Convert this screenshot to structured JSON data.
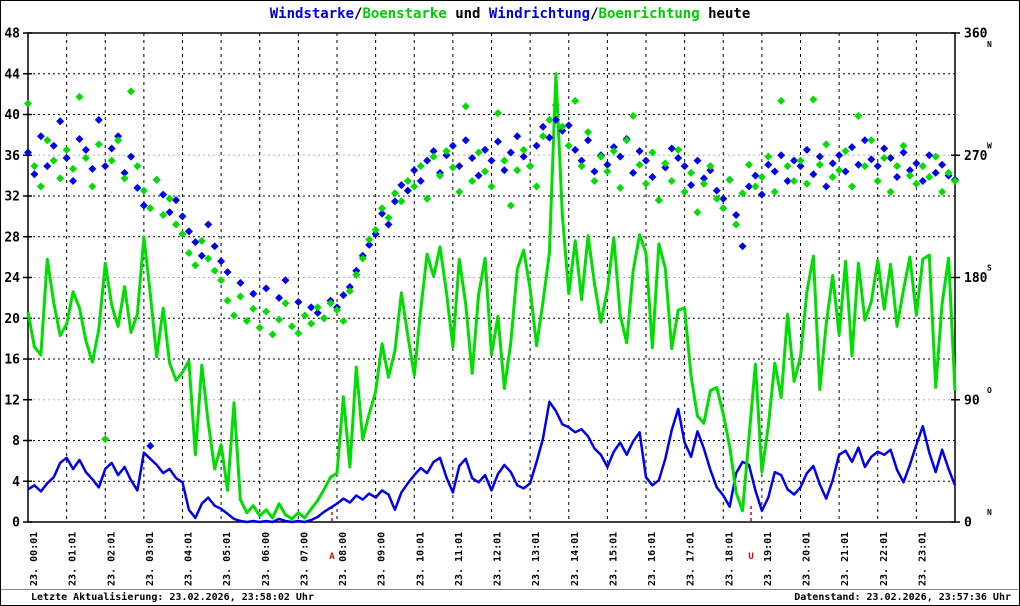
{
  "title": {
    "windstarke": "Windstarke",
    "slash1": "/",
    "boenstarke": "Boenstarke",
    "und": " und ",
    "windrichtung": "Windrichtung",
    "slash2": "/",
    "boenrichtung": "Boenrichtung",
    "heute": " heute"
  },
  "footer": {
    "left": "Letzte Aktualisierung: 23.02.2026, 23:58:02 Uhr",
    "right": "Datenstand: 23.02.2026, 23:57:36 Uhr"
  },
  "colors": {
    "blue": "#0000dd",
    "green": "#00cc00",
    "plot_blue": "#0000ee",
    "plot_green": "#00dd00",
    "red": "#ee0000",
    "grid_black": "#000000",
    "grid_gray": "#b0b0b0"
  },
  "chart_data": {
    "type": "line+scatter",
    "start_hour": 0,
    "interval_minutes": 10,
    "axes": {
      "left": {
        "min": 0,
        "max": 48,
        "step": 4,
        "ticks": [
          0,
          4,
          8,
          12,
          16,
          20,
          24,
          28,
          32,
          36,
          40,
          44,
          48
        ]
      },
      "right": {
        "min": 0,
        "max": 360,
        "ticks": [
          {
            "deg": 360,
            "label": "360",
            "letter": "N",
            "letter_below": true
          },
          {
            "deg": 270,
            "label": "270",
            "letter": "W",
            "letter_below": false
          },
          {
            "deg": 180,
            "label": "180",
            "letter": "S",
            "letter_below": false
          },
          {
            "deg": 90,
            "label": "90",
            "letter": "O",
            "letter_below": false
          },
          {
            "deg": 0,
            "label": "0",
            "letter": "N",
            "letter_below": false
          }
        ]
      },
      "gray_lines": [
        12,
        24,
        36
      ],
      "x_labels": [
        "23. 00:01",
        "23. 01:01",
        "23. 02:01",
        "23. 03:01",
        "23. 04:01",
        "23. 05:01",
        "23. 06:00",
        "23. 07:00",
        "23. 08:00",
        "23. 09:00",
        "23. 10:01",
        "23. 11:01",
        "23. 12:01",
        "23. 13:01",
        "23. 14:01",
        "23. 15:01",
        "23. 16:01",
        "23. 17:01",
        "23. 18:01",
        "23. 19:01",
        "23. 20:01",
        "23. 21:01",
        "23. 22:01",
        "23. 23:01"
      ]
    },
    "sun_markers": [
      {
        "label": "A",
        "hour": 7.87
      },
      {
        "label": "U",
        "hour": 18.72
      }
    ],
    "series": [
      {
        "name": "Windstarke",
        "kind": "line",
        "axis": "left",
        "color_key": "plot_blue",
        "width": 2.5,
        "values": [
          3.2,
          3.6,
          3.0,
          3.8,
          4.4,
          5.8,
          6.3,
          5.2,
          6.1,
          4.9,
          4.2,
          3.4,
          5.2,
          5.8,
          4.6,
          5.4,
          4.1,
          3.1,
          6.8,
          6.2,
          5.6,
          4.8,
          5.2,
          4.3,
          3.9,
          1.2,
          0.4,
          1.8,
          2.4,
          1.6,
          1.3,
          0.8,
          0.3,
          0.1,
          0.0,
          0.1,
          0.0,
          0.1,
          0.0,
          0.3,
          0.1,
          0.0,
          0.1,
          0.0,
          0.2,
          0.5,
          1.0,
          1.4,
          1.8,
          2.3,
          1.9,
          2.6,
          2.2,
          2.8,
          2.4,
          3.1,
          2.7,
          1.2,
          2.9,
          3.8,
          4.6,
          5.3,
          4.8,
          5.9,
          6.3,
          4.4,
          2.9,
          5.5,
          6.2,
          4.3,
          3.9,
          4.6,
          3.1,
          4.7,
          5.6,
          4.9,
          3.6,
          3.3,
          3.8,
          5.9,
          8.2,
          11.8,
          10.9,
          9.6,
          9.3,
          8.8,
          9.1,
          8.4,
          7.2,
          6.6,
          5.4,
          6.9,
          7.8,
          6.6,
          7.9,
          8.8,
          4.4,
          3.6,
          4.1,
          6.2,
          9.0,
          11.1,
          7.8,
          6.4,
          8.9,
          7.2,
          5.1,
          3.4,
          2.6,
          1.5,
          4.8,
          5.9,
          5.6,
          3.1,
          1.1,
          2.4,
          4.9,
          4.6,
          3.2,
          2.7,
          3.4,
          4.8,
          5.5,
          3.7,
          2.3,
          4.1,
          6.6,
          7.0,
          5.9,
          7.3,
          5.4,
          6.4,
          6.9,
          6.6,
          7.1,
          5.1,
          3.9,
          5.6,
          7.6,
          9.4,
          6.8,
          4.9,
          7.1,
          5.2,
          3.6
        ]
      },
      {
        "name": "Boenstarke",
        "kind": "line",
        "axis": "left",
        "color_key": "plot_green",
        "width": 3,
        "values": [
          20.6,
          17.2,
          16.4,
          25.8,
          21.5,
          18.3,
          19.4,
          22.6,
          21.0,
          17.8,
          15.7,
          18.9,
          25.4,
          21.3,
          19.2,
          23.1,
          18.6,
          20.4,
          28.0,
          22.4,
          16.2,
          21.0,
          15.6,
          13.9,
          14.7,
          15.8,
          6.6,
          15.4,
          9.8,
          5.2,
          7.6,
          3.1,
          11.7,
          2.2,
          0.9,
          1.6,
          0.6,
          1.2,
          0.4,
          1.8,
          0.7,
          0.3,
          0.9,
          0.4,
          1.3,
          2.1,
          3.2,
          4.4,
          4.8,
          12.3,
          5.4,
          15.2,
          8.1,
          10.6,
          12.8,
          17.5,
          14.2,
          16.8,
          22.5,
          18.3,
          14.4,
          20.8,
          26.3,
          24.1,
          27.0,
          22.6,
          17.2,
          25.8,
          21.4,
          14.6,
          22.3,
          25.9,
          16.4,
          20.2,
          13.1,
          17.6,
          24.8,
          26.7,
          22.9,
          17.3,
          21.6,
          26.4,
          44.0,
          30.2,
          22.4,
          27.6,
          21.8,
          28.1,
          23.4,
          19.6,
          22.8,
          27.9,
          20.3,
          17.6,
          24.6,
          28.2,
          26.4,
          17.1,
          27.3,
          24.9,
          17.0,
          20.8,
          21.0,
          14.3,
          10.4,
          9.7,
          12.9,
          13.2,
          10.6,
          7.4,
          2.9,
          1.1,
          8.3,
          15.5,
          4.9,
          9.4,
          15.6,
          12.2,
          20.4,
          13.8,
          16.2,
          22.6,
          26.1,
          13.0,
          19.4,
          24.2,
          18.4,
          25.6,
          16.3,
          25.4,
          19.8,
          21.6,
          25.7,
          20.9,
          25.3,
          19.2,
          22.8,
          26.0,
          20.3,
          25.8,
          26.2,
          13.2,
          21.4,
          25.9,
          12.9
        ]
      },
      {
        "name": "Windrichtung",
        "kind": "scatter",
        "axis": "right",
        "color_key": "plot_blue",
        "values": [
          272,
          256,
          284,
          262,
          277,
          295,
          268,
          251,
          282,
          274,
          260,
          296,
          262,
          275,
          284,
          257,
          269,
          246,
          233,
          56,
          252,
          241,
          228,
          237,
          225,
          214,
          206,
          196,
          219,
          203,
          192,
          184,
          null,
          176,
          null,
          168,
          null,
          172,
          null,
          165,
          178,
          null,
          162,
          null,
          158,
          154,
          150,
          163,
          158,
          167,
          173,
          185,
          196,
          204,
          212,
          227,
          219,
          236,
          248,
          244,
          259,
          251,
          266,
          273,
          257,
          270,
          277,
          262,
          281,
          268,
          255,
          274,
          266,
          280,
          259,
          272,
          284,
          269,
          262,
          277,
          291,
          283,
          296,
          288,
          292,
          274,
          266,
          281,
          258,
          270,
          263,
          276,
          269,
          282,
          257,
          273,
          266,
          254,
          237,
          261,
          275,
          268,
          262,
          248,
          266,
          253,
          259,
          244,
          238,
          252,
          226,
          203,
          247,
          255,
          241,
          263,
          258,
          270,
          251,
          266,
          262,
          274,
          256,
          269,
          247,
          264,
          270,
          258,
          276,
          263,
          281,
          267,
          262,
          275,
          268,
          254,
          272,
          259,
          264,
          251,
          270,
          257,
          263,
          255,
          252
        ]
      },
      {
        "name": "Boenrichtung",
        "kind": "scatter",
        "axis": "right",
        "color_key": "plot_green",
        "values": [
          308,
          262,
          247,
          281,
          266,
          253,
          274,
          260,
          313,
          268,
          247,
          278,
          61,
          266,
          281,
          253,
          317,
          262,
          244,
          231,
          252,
          226,
          238,
          219,
          212,
          198,
          189,
          207,
          194,
          185,
          178,
          163,
          152,
          166,
          148,
          157,
          143,
          155,
          138,
          149,
          161,
          144,
          139,
          152,
          146,
          158,
          150,
          161,
          156,
          148,
          170,
          182,
          194,
          208,
          215,
          231,
          224,
          242,
          236,
          251,
          247,
          262,
          238,
          269,
          255,
          273,
          261,
          243,
          306,
          251,
          272,
          258,
          247,
          301,
          266,
          233,
          259,
          274,
          262,
          247,
          284,
          296,
          307,
          291,
          277,
          310,
          262,
          287,
          251,
          269,
          258,
          273,
          246,
          281,
          299,
          263,
          249,
          272,
          237,
          264,
          251,
          274,
          243,
          257,
          228,
          249,
          262,
          238,
          231,
          252,
          219,
          242,
          263,
          247,
          254,
          269,
          243,
          310,
          262,
          251,
          266,
          249,
          311,
          263,
          278,
          254,
          259,
          273,
          247,
          299,
          262,
          281,
          251,
          268,
          243,
          262,
          277,
          255,
          249,
          262,
          254,
          269,
          243,
          257,
          251
        ]
      }
    ]
  }
}
